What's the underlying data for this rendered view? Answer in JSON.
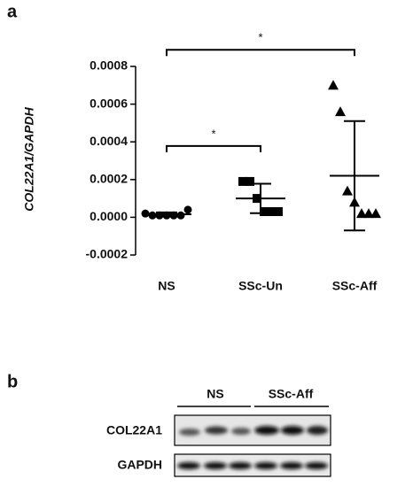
{
  "chart_data": {
    "type": "dotplot",
    "panel_label": "a",
    "y_label": "COL22A1/GAPDH",
    "categories": [
      "NS",
      "SSc-Un",
      "SSc-Aff"
    ],
    "markers": [
      "circle",
      "square",
      "triangle"
    ],
    "color": "#000000",
    "points": [
      [
        2e-05,
        1e-05,
        1e-05,
        1e-05,
        1e-05,
        1e-05,
        4e-05
      ],
      [
        0.00019,
        0.00019,
        0.0001,
        3e-05,
        3e-05,
        3e-05
      ],
      [
        0.0007,
        0.00056,
        0.00014,
        8e-05,
        2e-05,
        2e-05,
        2e-05
      ]
    ],
    "means": [
      1.6e-05,
      0.0001,
      0.00022
    ],
    "sds": [
      1e-05,
      7.8e-05,
      0.00029
    ],
    "ylim": [
      -0.0002,
      0.0008
    ],
    "yticks": [
      -0.0002,
      {
        "value": 0,
        "label": "0.0000"
      },
      0.0002,
      0.0004,
      0.0006,
      0.0008
    ],
    "significance": [
      {
        "between": [
          "NS",
          "SSc-Un"
        ],
        "text": "*"
      },
      {
        "between": [
          "NS",
          "SSc-Aff"
        ],
        "text": "*"
      }
    ]
  },
  "blot": {
    "panel_label": "b",
    "groups": [
      "NS",
      "SSc-Aff"
    ],
    "rows": [
      "COL22A1",
      "GAPDH"
    ]
  }
}
